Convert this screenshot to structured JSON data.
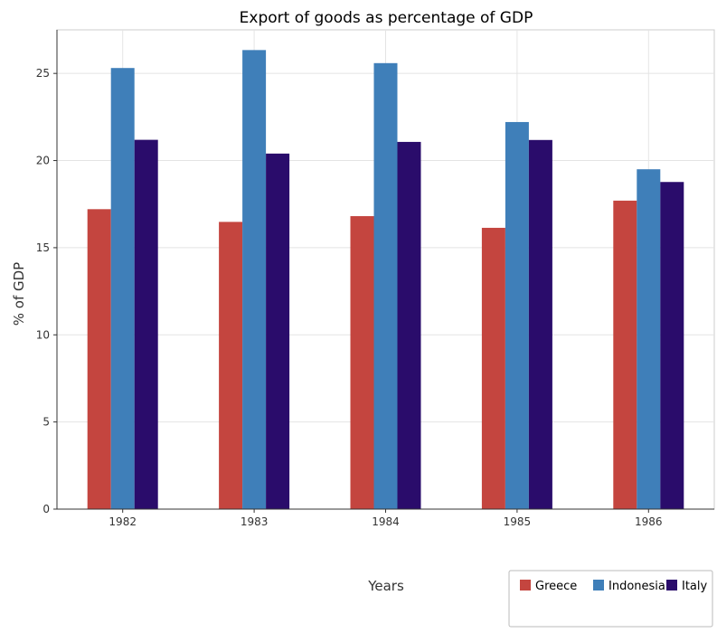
{
  "chart_data": {
    "type": "bar",
    "title": "Export of goods as percentage of GDP",
    "xlabel": "Years",
    "ylabel": "% of GDP",
    "categories": [
      "1982",
      "1983",
      "1984",
      "1985",
      "1986"
    ],
    "series": [
      {
        "name": "Greece",
        "color": "#c4453f",
        "values": [
          17.21,
          16.48,
          16.81,
          16.14,
          17.7
        ]
      },
      {
        "name": "Indonesia",
        "color": "#3f7fb9",
        "values": [
          25.31,
          26.34,
          25.59,
          22.21,
          19.5
        ]
      },
      {
        "name": "Italy",
        "color": "#2a0c6b",
        "values": [
          21.19,
          20.4,
          21.07,
          21.18,
          18.77
        ]
      }
    ],
    "ylim": [
      0,
      27.5
    ],
    "yticks": [
      0,
      5,
      10,
      15,
      20,
      25
    ],
    "grid": true,
    "legend_position": "bottom-right"
  }
}
